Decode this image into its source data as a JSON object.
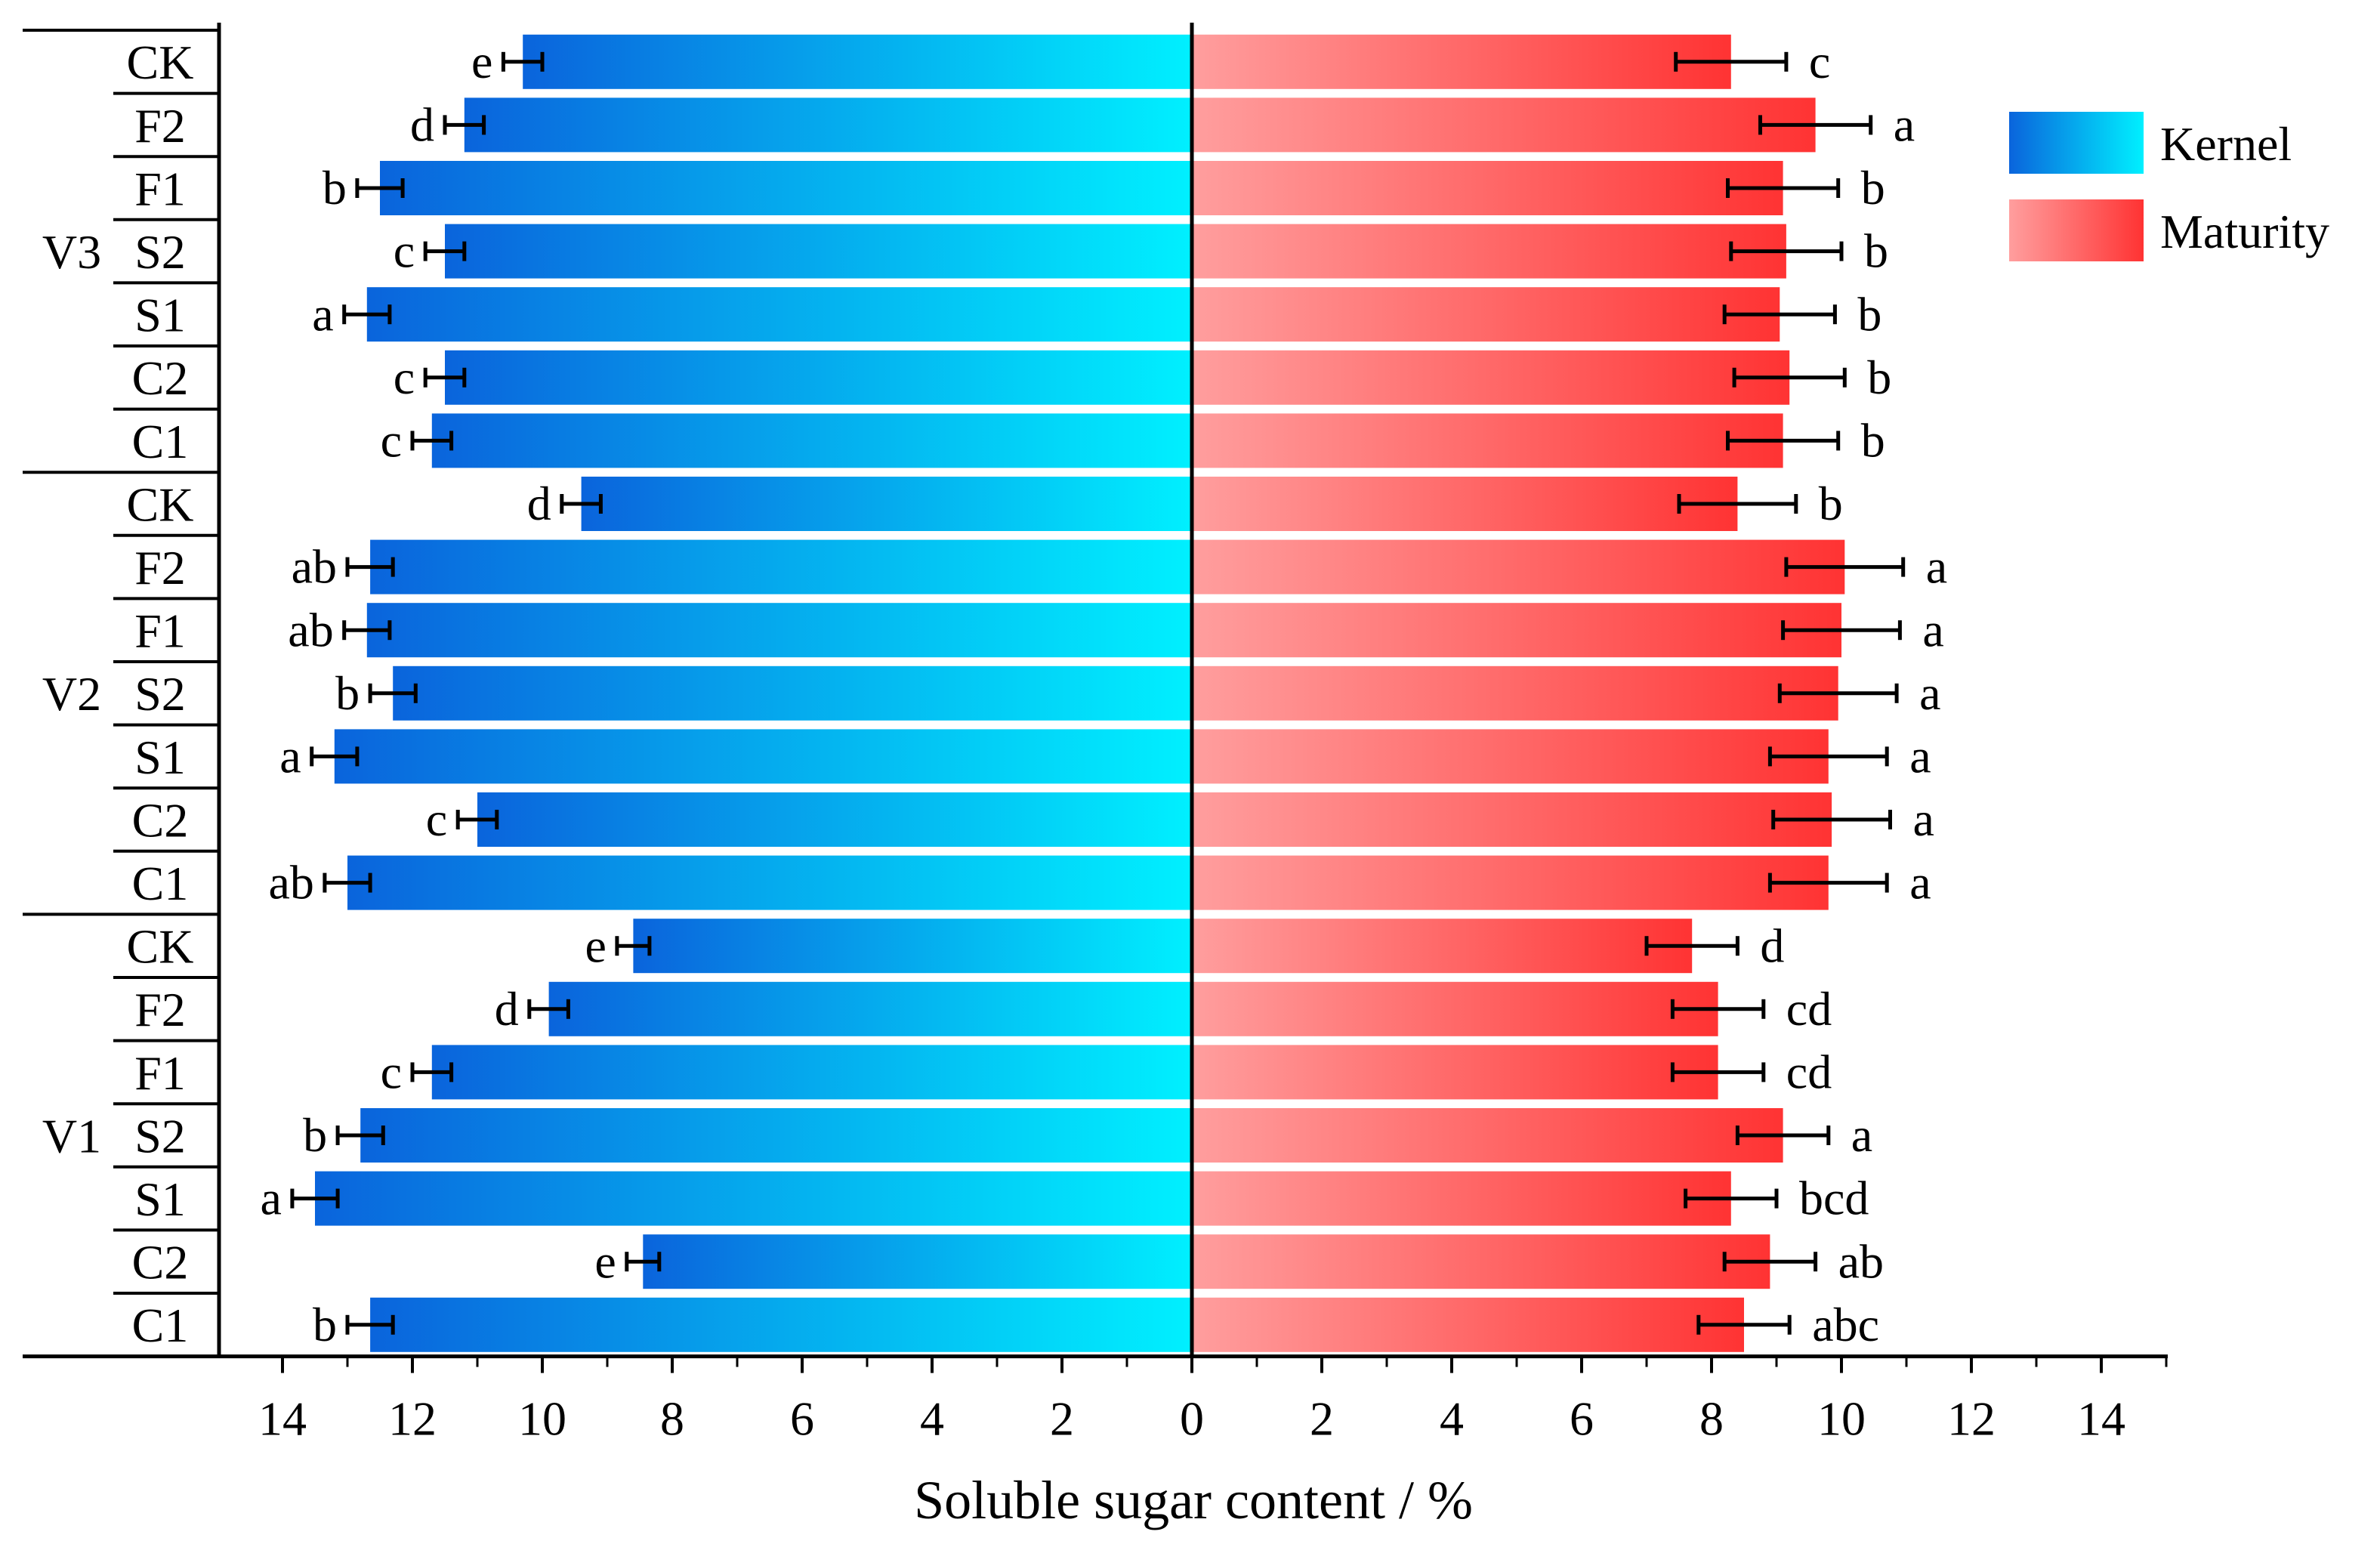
{
  "chart_data": {
    "type": "bar",
    "orientation": "horizontal-butterfly",
    "xlabel": "Soluble sugar content / %",
    "x_ticks_left": [
      "14",
      "12",
      "10",
      "8",
      "6",
      "4",
      "2"
    ],
    "x_ticks_right": [
      "0",
      "2",
      "4",
      "6",
      "8",
      "10",
      "12",
      "14"
    ],
    "xlim": [
      0,
      15
    ],
    "legend": {
      "position": "top-right",
      "entries": [
        "Kernel",
        "Maturity"
      ]
    },
    "colors": {
      "kernel_start": "#0a64dc",
      "kernel_end": "#00f0ff",
      "maturity_start": "#ff9e9e",
      "maturity_end": "#ff3333",
      "axis": "#000000"
    },
    "groups": [
      {
        "name": "V3",
        "rows": [
          {
            "label": "CK",
            "kernel": {
              "value": 10.3,
              "err": 0.3,
              "letter": "e"
            },
            "maturity": {
              "value": 8.3,
              "err": 0.85,
              "letter": "c"
            }
          },
          {
            "label": "F2",
            "kernel": {
              "value": 11.2,
              "err": 0.3,
              "letter": "d"
            },
            "maturity": {
              "value": 9.6,
              "err": 0.85,
              "letter": "a"
            }
          },
          {
            "label": "F1",
            "kernel": {
              "value": 12.5,
              "err": 0.35,
              "letter": "b"
            },
            "maturity": {
              "value": 9.1,
              "err": 0.85,
              "letter": "b"
            }
          },
          {
            "label": "S2",
            "kernel": {
              "value": 11.5,
              "err": 0.3,
              "letter": "c"
            },
            "maturity": {
              "value": 9.15,
              "err": 0.85,
              "letter": "b"
            }
          },
          {
            "label": "S1",
            "kernel": {
              "value": 12.7,
              "err": 0.35,
              "letter": "a"
            },
            "maturity": {
              "value": 9.05,
              "err": 0.85,
              "letter": "b"
            }
          },
          {
            "label": "C2",
            "kernel": {
              "value": 11.5,
              "err": 0.3,
              "letter": "c"
            },
            "maturity": {
              "value": 9.2,
              "err": 0.85,
              "letter": "b"
            }
          },
          {
            "label": "C1",
            "kernel": {
              "value": 11.7,
              "err": 0.3,
              "letter": "c"
            },
            "maturity": {
              "value": 9.1,
              "err": 0.85,
              "letter": "b"
            }
          }
        ]
      },
      {
        "name": "V2",
        "rows": [
          {
            "label": "CK",
            "kernel": {
              "value": 9.4,
              "err": 0.3,
              "letter": "d"
            },
            "maturity": {
              "value": 8.4,
              "err": 0.9,
              "letter": "b"
            }
          },
          {
            "label": "F2",
            "kernel": {
              "value": 12.65,
              "err": 0.35,
              "letter": "ab"
            },
            "maturity": {
              "value": 10.05,
              "err": 0.9,
              "letter": "a"
            }
          },
          {
            "label": "F1",
            "kernel": {
              "value": 12.7,
              "err": 0.35,
              "letter": "ab"
            },
            "maturity": {
              "value": 10.0,
              "err": 0.9,
              "letter": "a"
            }
          },
          {
            "label": "S2",
            "kernel": {
              "value": 12.3,
              "err": 0.35,
              "letter": "b"
            },
            "maturity": {
              "value": 9.95,
              "err": 0.9,
              "letter": "a"
            }
          },
          {
            "label": "S1",
            "kernel": {
              "value": 13.2,
              "err": 0.35,
              "letter": "a"
            },
            "maturity": {
              "value": 9.8,
              "err": 0.9,
              "letter": "a"
            }
          },
          {
            "label": "C2",
            "kernel": {
              "value": 11.0,
              "err": 0.3,
              "letter": "c"
            },
            "maturity": {
              "value": 9.85,
              "err": 0.9,
              "letter": "a"
            }
          },
          {
            "label": "C1",
            "kernel": {
              "value": 13.0,
              "err": 0.35,
              "letter": "ab"
            },
            "maturity": {
              "value": 9.8,
              "err": 0.9,
              "letter": "a"
            }
          }
        ]
      },
      {
        "name": "V1",
        "rows": [
          {
            "label": "CK",
            "kernel": {
              "value": 8.6,
              "err": 0.25,
              "letter": "e"
            },
            "maturity": {
              "value": 7.7,
              "err": 0.7,
              "letter": "d"
            }
          },
          {
            "label": "F2",
            "kernel": {
              "value": 9.9,
              "err": 0.3,
              "letter": "d"
            },
            "maturity": {
              "value": 8.1,
              "err": 0.7,
              "letter": "cd"
            }
          },
          {
            "label": "F1",
            "kernel": {
              "value": 11.7,
              "err": 0.3,
              "letter": "c"
            },
            "maturity": {
              "value": 8.1,
              "err": 0.7,
              "letter": "cd"
            }
          },
          {
            "label": "S2",
            "kernel": {
              "value": 12.8,
              "err": 0.35,
              "letter": "b"
            },
            "maturity": {
              "value": 9.1,
              "err": 0.7,
              "letter": "a"
            }
          },
          {
            "label": "S1",
            "kernel": {
              "value": 13.5,
              "err": 0.35,
              "letter": "a"
            },
            "maturity": {
              "value": 8.3,
              "err": 0.7,
              "letter": "bcd"
            }
          },
          {
            "label": "C2",
            "kernel": {
              "value": 8.45,
              "err": 0.25,
              "letter": "e"
            },
            "maturity": {
              "value": 8.9,
              "err": 0.7,
              "letter": "ab"
            }
          },
          {
            "label": "C1",
            "kernel": {
              "value": 12.65,
              "err": 0.35,
              "letter": "b"
            },
            "maturity": {
              "value": 8.5,
              "err": 0.7,
              "letter": "abc"
            }
          }
        ]
      }
    ]
  }
}
